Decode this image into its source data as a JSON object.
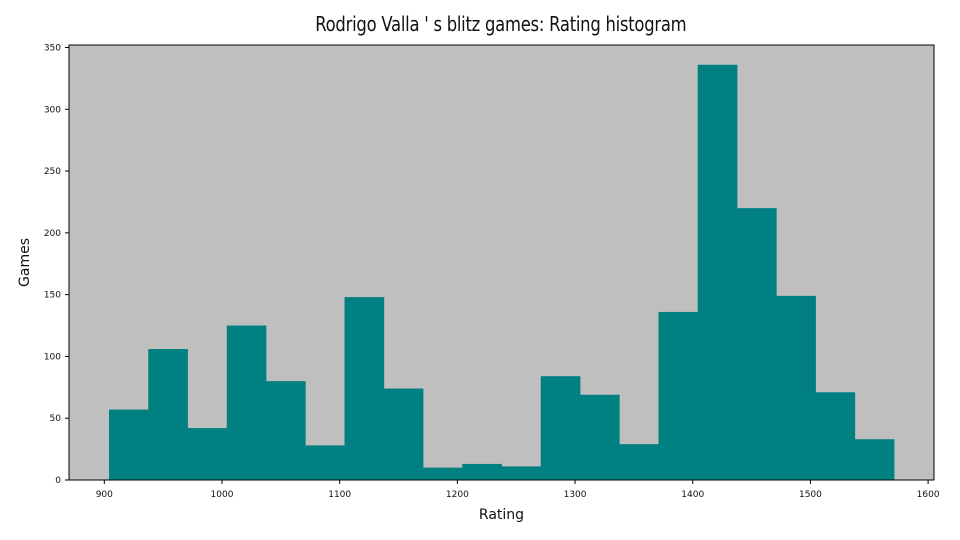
{
  "chart_data": {
    "type": "bar",
    "title": "Rodrigo Valla ' s blitz games: Rating histogram",
    "xlabel": "Rating",
    "ylabel": "Games",
    "xlim": [
      870,
      1605
    ],
    "ylim": [
      0,
      352
    ],
    "x_ticks": [
      900,
      1000,
      1100,
      1200,
      1300,
      1400,
      1500,
      1600
    ],
    "y_ticks": [
      0,
      50,
      100,
      150,
      200,
      250,
      300,
      350
    ],
    "bin_start": 904,
    "bin_width": 33.35,
    "values": [
      57,
      106,
      42,
      125,
      80,
      28,
      148,
      74,
      10,
      13,
      11,
      84,
      69,
      29,
      136,
      336,
      220,
      149,
      71,
      33
    ],
    "grid": false,
    "colors": {
      "bar": "#008080",
      "plot_bg": "#bfbfbf"
    }
  }
}
